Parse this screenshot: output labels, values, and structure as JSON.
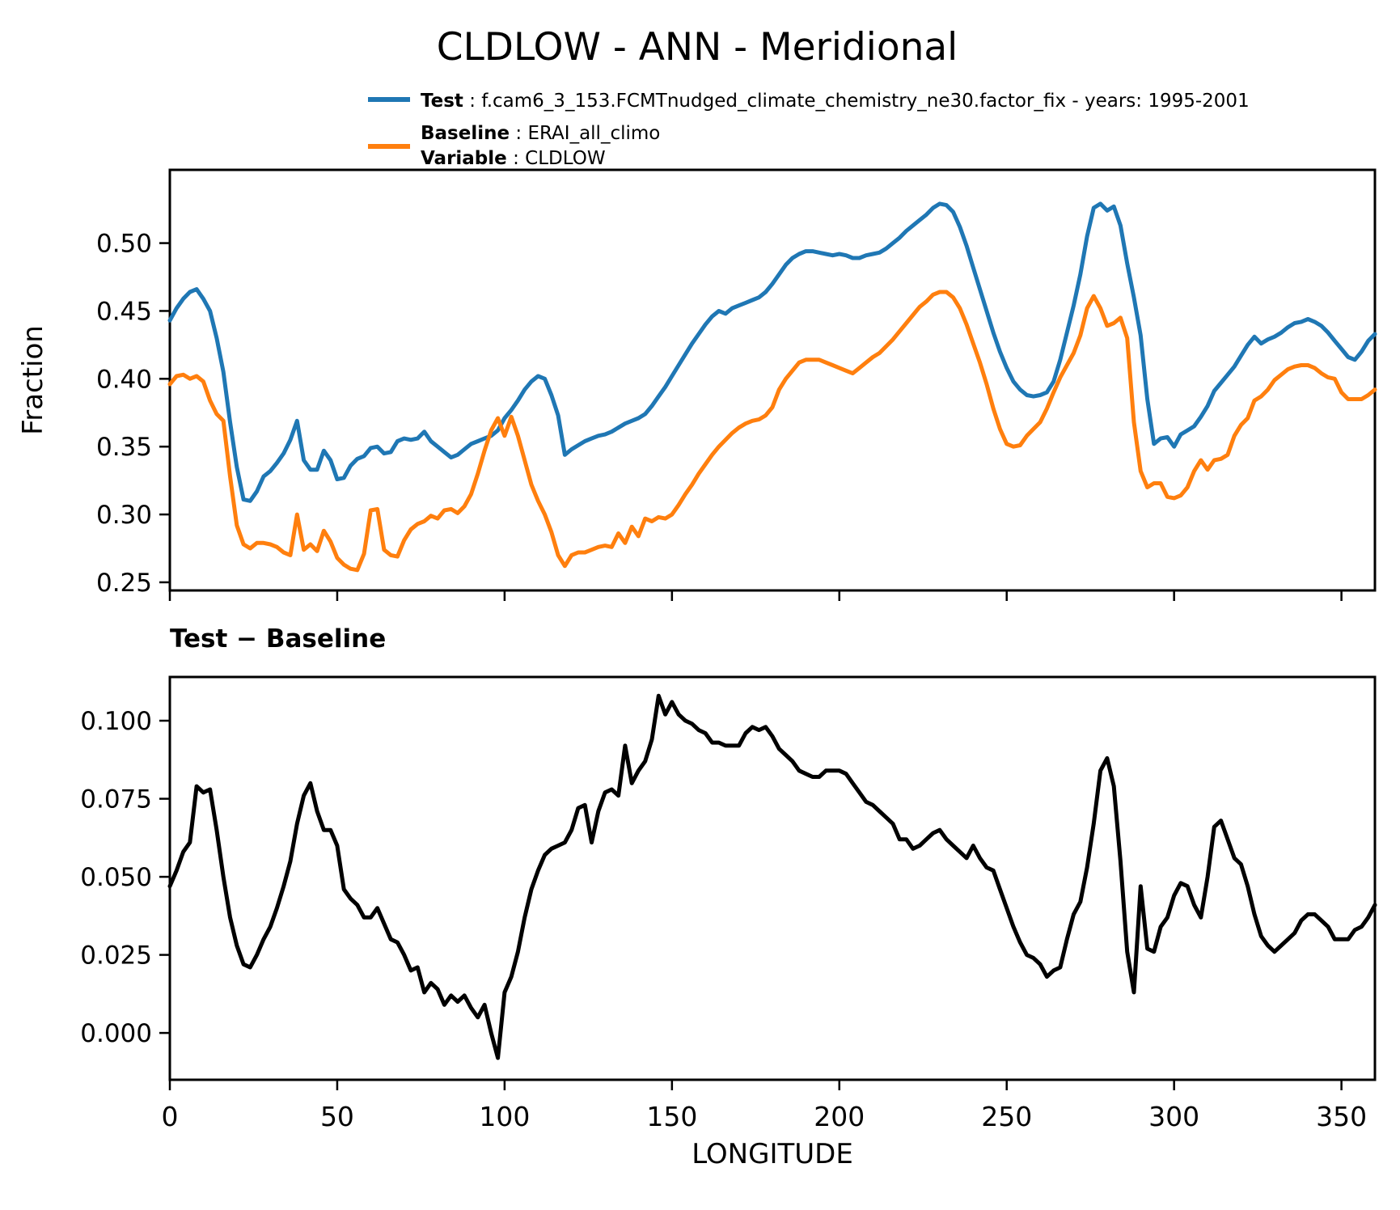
{
  "title": "CLDLOW - ANN - Meridional",
  "legend": {
    "separator": " : ",
    "entries": [
      {
        "label": "Test",
        "value": "f.cam6_3_153.FCMTnudged_climate_chemistry_ne30.factor_fix - years: 1995-2001",
        "color": "#1f77b4"
      },
      {
        "label": "Baseline",
        "value": "ERAI_all_climo",
        "color": "#ff7f0e"
      },
      {
        "label": "Variable",
        "value": "CLDLOW",
        "color": null
      }
    ]
  },
  "colors": {
    "test": "#1f77b4",
    "baseline": "#ff7f0e",
    "diff": "#000000",
    "axis": "#000000"
  },
  "shared_x": [
    0,
    2,
    4,
    6,
    8,
    10,
    12,
    14,
    16,
    18,
    20,
    22,
    24,
    26,
    28,
    30,
    32,
    34,
    36,
    38,
    40,
    42,
    44,
    46,
    48,
    50,
    52,
    54,
    56,
    58,
    60,
    62,
    64,
    66,
    68,
    70,
    72,
    74,
    76,
    78,
    80,
    82,
    84,
    86,
    88,
    90,
    92,
    94,
    96,
    98,
    100,
    102,
    104,
    106,
    108,
    110,
    112,
    114,
    116,
    118,
    120,
    122,
    124,
    126,
    128,
    130,
    132,
    134,
    136,
    138,
    140,
    142,
    144,
    146,
    148,
    150,
    152,
    154,
    156,
    158,
    160,
    162,
    164,
    166,
    168,
    170,
    172,
    174,
    176,
    178,
    180,
    182,
    184,
    186,
    188,
    190,
    192,
    194,
    196,
    198,
    200,
    202,
    204,
    206,
    208,
    210,
    212,
    214,
    216,
    218,
    220,
    222,
    224,
    226,
    228,
    230,
    232,
    234,
    236,
    238,
    240,
    242,
    244,
    246,
    248,
    250,
    252,
    254,
    256,
    258,
    260,
    262,
    264,
    266,
    268,
    270,
    272,
    274,
    276,
    278,
    280,
    282,
    284,
    286,
    288,
    290,
    292,
    294,
    296,
    298,
    300,
    302,
    304,
    306,
    308,
    310,
    312,
    314,
    316,
    318,
    320,
    322,
    324,
    326,
    328,
    330,
    332,
    334,
    336,
    338,
    340,
    342,
    344,
    346,
    348,
    350,
    352,
    354,
    356,
    358,
    360
  ],
  "chart_data": [
    {
      "id": "fraction-panel",
      "type": "line",
      "ylabel": "Fraction",
      "xlim": [
        0,
        360
      ],
      "ylim": [
        0.244,
        0.554
      ],
      "yticks": [
        0.25,
        0.3,
        0.35,
        0.4,
        0.45,
        0.5
      ],
      "ytick_labels": [
        "0.25",
        "0.30",
        "0.35",
        "0.40",
        "0.45",
        "0.50"
      ],
      "xticks": [
        0,
        50,
        100,
        150,
        200,
        250,
        300,
        350
      ],
      "show_xtick_labels": false,
      "grid": false,
      "series": [
        {
          "name": "Test",
          "color": "#1f77b4",
          "values": [
            0.443,
            0.452,
            0.459,
            0.464,
            0.466,
            0.459,
            0.45,
            0.43,
            0.405,
            0.368,
            0.335,
            0.311,
            0.31,
            0.317,
            0.328,
            0.332,
            0.338,
            0.345,
            0.355,
            0.369,
            0.34,
            0.333,
            0.333,
            0.347,
            0.34,
            0.326,
            0.327,
            0.336,
            0.341,
            0.343,
            0.349,
            0.35,
            0.345,
            0.346,
            0.354,
            0.356,
            0.355,
            0.356,
            0.361,
            0.354,
            0.35,
            0.346,
            0.342,
            0.344,
            0.348,
            0.352,
            0.354,
            0.356,
            0.358,
            0.362,
            0.371,
            0.377,
            0.384,
            0.392,
            0.398,
            0.402,
            0.4,
            0.388,
            0.373,
            0.344,
            0.348,
            0.351,
            0.354,
            0.356,
            0.358,
            0.359,
            0.361,
            0.364,
            0.367,
            0.369,
            0.371,
            0.374,
            0.38,
            0.387,
            0.394,
            0.402,
            0.41,
            0.418,
            0.426,
            0.433,
            0.44,
            0.446,
            0.45,
            0.448,
            0.452,
            0.454,
            0.456,
            0.458,
            0.46,
            0.464,
            0.47,
            0.477,
            0.484,
            0.489,
            0.492,
            0.494,
            0.494,
            0.493,
            0.492,
            0.491,
            0.492,
            0.491,
            0.489,
            0.489,
            0.491,
            0.492,
            0.493,
            0.496,
            0.5,
            0.504,
            0.509,
            0.513,
            0.517,
            0.521,
            0.526,
            0.529,
            0.528,
            0.523,
            0.512,
            0.498,
            0.482,
            0.466,
            0.45,
            0.434,
            0.42,
            0.408,
            0.398,
            0.392,
            0.388,
            0.387,
            0.388,
            0.39,
            0.398,
            0.414,
            0.434,
            0.454,
            0.477,
            0.505,
            0.526,
            0.529,
            0.524,
            0.527,
            0.513,
            0.485,
            0.46,
            0.432,
            0.385,
            0.352,
            0.356,
            0.357,
            0.35,
            0.359,
            0.362,
            0.365,
            0.372,
            0.38,
            0.391,
            0.397,
            0.403,
            0.409,
            0.417,
            0.425,
            0.431,
            0.426,
            0.429,
            0.431,
            0.434,
            0.438,
            0.441,
            0.442,
            0.444,
            0.442,
            0.439,
            0.434,
            0.428,
            0.422,
            0.416,
            0.414,
            0.42,
            0.428,
            0.433
          ]
        },
        {
          "name": "Baseline",
          "color": "#ff7f0e",
          "values": [
            0.396,
            0.402,
            0.403,
            0.4,
            0.402,
            0.398,
            0.384,
            0.374,
            0.369,
            0.328,
            0.292,
            0.278,
            0.275,
            0.279,
            0.279,
            0.278,
            0.276,
            0.272,
            0.27,
            0.3,
            0.274,
            0.278,
            0.273,
            0.288,
            0.28,
            0.268,
            0.263,
            0.26,
            0.259,
            0.271,
            0.303,
            0.304,
            0.274,
            0.27,
            0.269,
            0.281,
            0.289,
            0.293,
            0.295,
            0.299,
            0.297,
            0.303,
            0.304,
            0.301,
            0.306,
            0.315,
            0.33,
            0.347,
            0.362,
            0.371,
            0.358,
            0.372,
            0.358,
            0.34,
            0.322,
            0.31,
            0.3,
            0.287,
            0.27,
            0.262,
            0.27,
            0.272,
            0.272,
            0.274,
            0.276,
            0.277,
            0.276,
            0.286,
            0.279,
            0.291,
            0.284,
            0.297,
            0.295,
            0.298,
            0.297,
            0.3,
            0.307,
            0.315,
            0.322,
            0.33,
            0.337,
            0.344,
            0.35,
            0.355,
            0.36,
            0.364,
            0.367,
            0.369,
            0.37,
            0.373,
            0.379,
            0.392,
            0.4,
            0.406,
            0.412,
            0.414,
            0.414,
            0.414,
            0.412,
            0.41,
            0.408,
            0.406,
            0.404,
            0.408,
            0.412,
            0.416,
            0.419,
            0.424,
            0.429,
            0.435,
            0.441,
            0.447,
            0.453,
            0.457,
            0.462,
            0.464,
            0.464,
            0.46,
            0.452,
            0.44,
            0.426,
            0.412,
            0.396,
            0.378,
            0.363,
            0.352,
            0.35,
            0.351,
            0.358,
            0.363,
            0.368,
            0.378,
            0.39,
            0.401,
            0.41,
            0.419,
            0.432,
            0.452,
            0.461,
            0.452,
            0.439,
            0.441,
            0.445,
            0.43,
            0.368,
            0.332,
            0.32,
            0.323,
            0.323,
            0.313,
            0.312,
            0.314,
            0.32,
            0.332,
            0.34,
            0.333,
            0.34,
            0.341,
            0.344,
            0.358,
            0.366,
            0.371,
            0.384,
            0.387,
            0.392,
            0.399,
            0.403,
            0.407,
            0.409,
            0.41,
            0.41,
            0.408,
            0.404,
            0.401,
            0.4,
            0.39,
            0.385,
            0.385,
            0.385,
            0.388,
            0.392
          ]
        }
      ]
    },
    {
      "id": "diff-panel",
      "type": "line",
      "title": "Test − Baseline",
      "xlabel": "LONGITUDE",
      "xlim": [
        0,
        360
      ],
      "ylim": [
        -0.015,
        0.114
      ],
      "yticks": [
        0.0,
        0.025,
        0.05,
        0.075,
        0.1
      ],
      "ytick_labels": [
        "0.000",
        "0.025",
        "0.050",
        "0.075",
        "0.100"
      ],
      "xticks": [
        0,
        50,
        100,
        150,
        200,
        250,
        300,
        350
      ],
      "xtick_labels": [
        "0",
        "50",
        "100",
        "150",
        "200",
        "250",
        "300",
        "350"
      ],
      "show_xtick_labels": true,
      "grid": false,
      "series": [
        {
          "name": "Test − Baseline",
          "color": "#000000",
          "values": [
            0.047,
            0.052,
            0.058,
            0.061,
            0.079,
            0.077,
            0.078,
            0.065,
            0.05,
            0.037,
            0.028,
            0.022,
            0.021,
            0.025,
            0.03,
            0.034,
            0.04,
            0.047,
            0.055,
            0.067,
            0.076,
            0.08,
            0.071,
            0.065,
            0.065,
            0.06,
            0.046,
            0.043,
            0.041,
            0.037,
            0.037,
            0.04,
            0.035,
            0.03,
            0.029,
            0.025,
            0.02,
            0.021,
            0.013,
            0.016,
            0.014,
            0.009,
            0.012,
            0.01,
            0.012,
            0.008,
            0.005,
            0.009,
            0.0,
            -0.008,
            0.013,
            0.018,
            0.026,
            0.037,
            0.046,
            0.052,
            0.057,
            0.059,
            0.06,
            0.061,
            0.065,
            0.072,
            0.073,
            0.061,
            0.071,
            0.077,
            0.078,
            0.076,
            0.092,
            0.08,
            0.084,
            0.087,
            0.094,
            0.108,
            0.102,
            0.106,
            0.102,
            0.1,
            0.099,
            0.097,
            0.096,
            0.093,
            0.093,
            0.092,
            0.092,
            0.092,
            0.096,
            0.098,
            0.097,
            0.098,
            0.095,
            0.091,
            0.089,
            0.087,
            0.084,
            0.083,
            0.082,
            0.082,
            0.084,
            0.084,
            0.084,
            0.083,
            0.08,
            0.077,
            0.074,
            0.073,
            0.071,
            0.069,
            0.067,
            0.062,
            0.062,
            0.059,
            0.06,
            0.062,
            0.064,
            0.065,
            0.062,
            0.06,
            0.058,
            0.056,
            0.06,
            0.056,
            0.053,
            0.052,
            0.046,
            0.04,
            0.034,
            0.029,
            0.025,
            0.024,
            0.022,
            0.018,
            0.02,
            0.021,
            0.03,
            0.038,
            0.042,
            0.053,
            0.067,
            0.084,
            0.088,
            0.079,
            0.055,
            0.026,
            0.013,
            0.047,
            0.027,
            0.026,
            0.034,
            0.037,
            0.044,
            0.048,
            0.047,
            0.041,
            0.037,
            0.05,
            0.066,
            0.068,
            0.062,
            0.056,
            0.054,
            0.047,
            0.038,
            0.031,
            0.028,
            0.026,
            0.028,
            0.03,
            0.032,
            0.036,
            0.038,
            0.038,
            0.036,
            0.034,
            0.03,
            0.03,
            0.03,
            0.033,
            0.034,
            0.037,
            0.041
          ]
        }
      ]
    }
  ]
}
